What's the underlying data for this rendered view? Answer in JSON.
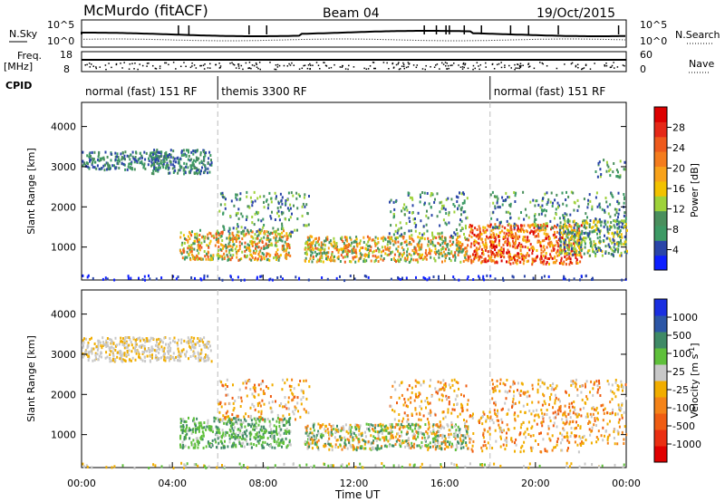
{
  "header": {
    "title": "McMurdo (fitACF)",
    "beam": "Beam 04",
    "date": "19/Oct/2015"
  },
  "meta_panel": {
    "left_labels": {
      "nsky": "N.Sky",
      "freq": "Freq.",
      "freq_unit": "[MHz]",
      "cpid": "CPID"
    },
    "right_labels": {
      "nsearch": "N.Search",
      "nave": "Nave"
    },
    "nsky_ticks": [
      "10^5",
      "10^0"
    ],
    "nsearch_ticks": [
      "10^5",
      "10^0"
    ],
    "freq_ticks": [
      "18",
      "8"
    ],
    "nave_ticks": [
      "60",
      "0"
    ],
    "cpid_segments": [
      {
        "label": "normal (fast) 151 RF",
        "start_hour": 0,
        "end_hour": 6
      },
      {
        "label": "themis 3300 RF",
        "start_hour": 6,
        "end_hour": 18
      },
      {
        "label": "normal (fast) 151 RF",
        "start_hour": 18,
        "end_hour": 24
      }
    ]
  },
  "colorbars": {
    "power": {
      "label": "Power [dB]",
      "ticks": [
        "4",
        "8",
        "12",
        "16",
        "20",
        "24",
        "28"
      ],
      "colors": [
        "#0d1fff",
        "#2a45a8",
        "#3d9a65",
        "#4a8f5d",
        "#9ed23a",
        "#f2c200",
        "#f8a21a",
        "#f47c1d",
        "#ee5a1c",
        "#e52817",
        "#dd0000"
      ]
    },
    "velocity": {
      "label": "Velocity [m s",
      "label_sup": "-1",
      "label_end": "]",
      "ticks": [
        "1000",
        "500",
        "100",
        "25",
        "-25",
        "-100",
        "-500",
        "-1000"
      ],
      "colors": [
        "#1a2fe0",
        "#2c56a6",
        "#3f8a66",
        "#5fc03b",
        "#c8c8c8",
        "#f1ad00",
        "#f48318",
        "#ef5c12",
        "#ea2f12",
        "#e00000"
      ]
    }
  },
  "chart_data": [
    {
      "type": "heatmap",
      "ylabel": "Slant Range [km]",
      "quantity": "Power",
      "ylim": [
        180,
        4600
      ],
      "yticks": [
        "1000",
        "2000",
        "3000",
        "4000"
      ],
      "xlim_hours": [
        0,
        24
      ],
      "scatter_regions": [
        {
          "t0": 0.0,
          "t1": 24.0,
          "r0": 200,
          "r1": 320,
          "level": "low-sparse"
        },
        {
          "t0": 0.0,
          "t1": 3.9,
          "r0": 2950,
          "r1": 3400,
          "level": "low-mid"
        },
        {
          "t0": 3.0,
          "t1": 5.7,
          "r0": 2850,
          "r1": 3450,
          "level": "low-mid"
        },
        {
          "t0": 4.3,
          "t1": 9.2,
          "r0": 700,
          "r1": 1450,
          "level": "high"
        },
        {
          "t0": 6.0,
          "t1": 10.0,
          "r0": 1400,
          "r1": 2400,
          "level": "low"
        },
        {
          "t0": 9.8,
          "t1": 17.0,
          "r0": 650,
          "r1": 1300,
          "level": "high"
        },
        {
          "t0": 13.5,
          "t1": 17.0,
          "r0": 1300,
          "r1": 2400,
          "level": "low"
        },
        {
          "t0": 17.0,
          "t1": 22.0,
          "r0": 600,
          "r1": 1600,
          "level": "very-high"
        },
        {
          "t0": 18.0,
          "t1": 24.0,
          "r0": 1500,
          "r1": 2400,
          "level": "low"
        },
        {
          "t0": 21.0,
          "t1": 24.0,
          "r0": 800,
          "r1": 1700,
          "level": "mid"
        },
        {
          "t0": 22.5,
          "t1": 24.0,
          "r0": 2700,
          "r1": 3200,
          "level": "low"
        }
      ]
    },
    {
      "type": "heatmap",
      "ylabel": "Slant Range [km]",
      "quantity": "Velocity",
      "ylim": [
        180,
        4600
      ],
      "yticks": [
        "1000",
        "2000",
        "3000",
        "4000"
      ],
      "xlim_hours": [
        0,
        24
      ],
      "xticks": [
        "00:00",
        "04:00",
        "08:00",
        "12:00",
        "16:00",
        "20:00",
        "00:00"
      ],
      "xlabel": "Time UT",
      "scatter_regions": [
        {
          "t0": 0.0,
          "t1": 24.0,
          "r0": 200,
          "r1": 320,
          "level": "slow-sparse"
        },
        {
          "t0": 0.0,
          "t1": 5.7,
          "r0": 2850,
          "r1": 3450,
          "level": "gray"
        },
        {
          "t0": 4.3,
          "t1": 9.2,
          "r0": 700,
          "r1": 1450,
          "level": "positive"
        },
        {
          "t0": 6.0,
          "t1": 10.0,
          "r0": 1400,
          "r1": 2400,
          "level": "negative"
        },
        {
          "t0": 9.8,
          "t1": 17.0,
          "r0": 650,
          "r1": 1300,
          "level": "mixed"
        },
        {
          "t0": 13.5,
          "t1": 17.0,
          "r0": 1300,
          "r1": 2400,
          "level": "negative"
        },
        {
          "t0": 17.0,
          "t1": 22.0,
          "r0": 600,
          "r1": 1600,
          "level": "negative"
        },
        {
          "t0": 18.0,
          "t1": 24.0,
          "r0": 1500,
          "r1": 2400,
          "level": "negative"
        },
        {
          "t0": 21.0,
          "t1": 24.0,
          "r0": 800,
          "r1": 1700,
          "level": "negative"
        }
      ]
    }
  ]
}
